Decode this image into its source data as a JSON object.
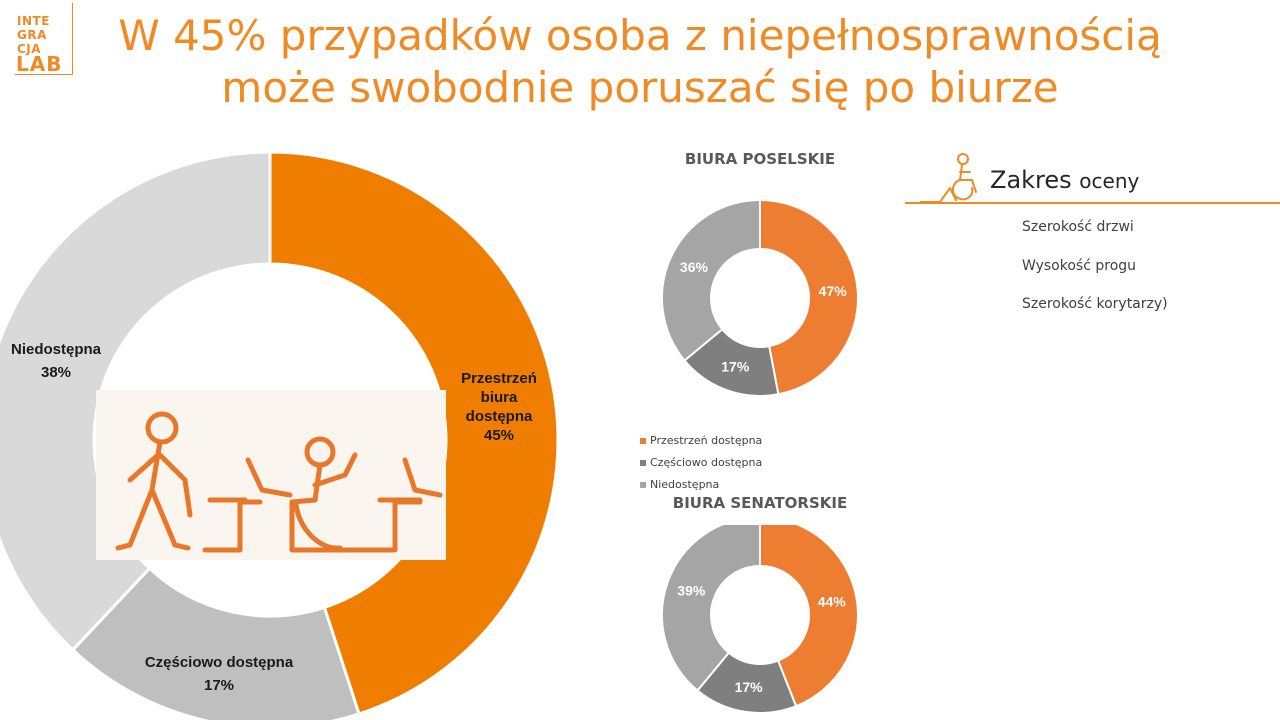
{
  "logo": {
    "line1": "INTE",
    "line2": "GRA",
    "line3": "CJA",
    "line4": "LAB"
  },
  "title": {
    "line1": "W 45% przypadków osoba z niepełnosprawnością",
    "line2": "może swobodnie poruszać się po biurze"
  },
  "colors": {
    "accent": "#f08a24",
    "main_accessible": "#ef7d00",
    "main_partial": "#bfbfbf",
    "main_inaccessible": "#d9d9d9",
    "small_accessible": "#ed7d31",
    "small_partial": "#7f7f7f",
    "small_inaccessible": "#a5a5a5"
  },
  "chart_data": [
    {
      "type": "pie",
      "title": "",
      "categories": [
        "Przestrzeń biura dostępna",
        "Częściowo dostępna",
        "Niedostępna"
      ],
      "values": [
        45,
        17,
        38
      ],
      "labels": [
        {
          "lines": [
            "Przestrzeń",
            "biura",
            "dostępna"
          ],
          "value": "45%"
        },
        {
          "lines": [
            "Częściowo dostępna"
          ],
          "value": "17%"
        },
        {
          "lines": [
            "Niedostępna"
          ],
          "value": "38%"
        }
      ]
    },
    {
      "type": "pie",
      "title": "BIURA POSELSKIE",
      "categories": [
        "Przestrzeń dostępna",
        "Częściowo dostępna",
        "Niedostępna"
      ],
      "values": [
        47,
        17,
        36
      ],
      "value_labels": [
        "47%",
        "17%",
        "36%"
      ]
    },
    {
      "type": "pie",
      "title": "BIURA SENATORSKIE",
      "categories": [
        "Przestrzeń dostępna",
        "Częściowo dostępna",
        "Niedostępna"
      ],
      "values": [
        44,
        17,
        39
      ],
      "value_labels": [
        "44%",
        "17%",
        "39%"
      ]
    }
  ],
  "legend": {
    "items": [
      "Przestrzeń dostępna",
      "Częściowo dostępna",
      "Niedostępna"
    ],
    "placement": "between-charts"
  },
  "scope": {
    "title_main": "Zakres",
    "title_small": "oceny",
    "items": [
      "Szerokość drzwi",
      "Wysokość progu",
      "Szerokość korytarzy)"
    ],
    "icon": "wheelchair-user-icon"
  },
  "illustration": {
    "icon": "people-at-desks-illustration"
  }
}
